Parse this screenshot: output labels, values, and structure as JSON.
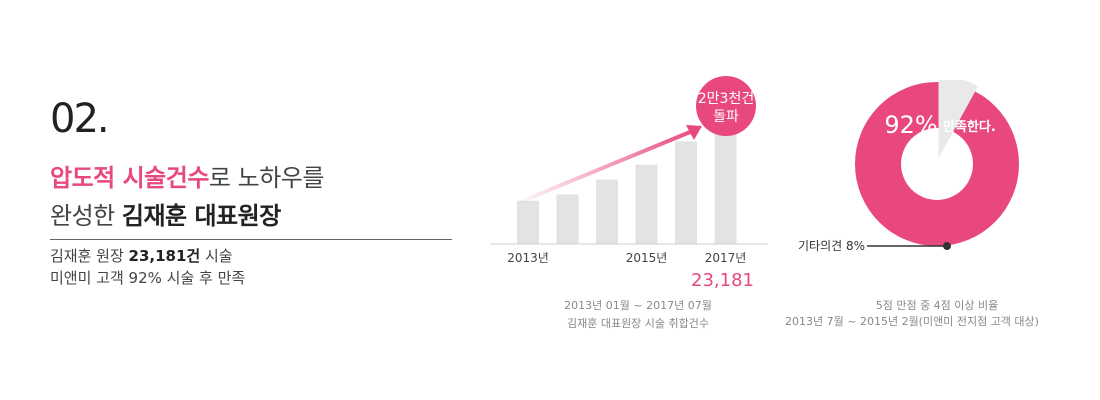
{
  "header": {
    "number": "02.",
    "title_pink": "압도적 시술건수",
    "title_rest": "로 노하우를",
    "subtitle_plain": "완성한 ",
    "subtitle_bold": "김재훈 대표원장"
  },
  "summary": {
    "line1_prefix": "김재훈 원장 ",
    "line1_value": "23,181건",
    "line1_suffix": " 시술",
    "line2": "미앤미 고객 92% 시술 후 만족"
  },
  "colors": {
    "accent": "#e8487e",
    "bar": "#e3e3e3",
    "gray_wedge": "#e9e9e9"
  },
  "chart_data": [
    {
      "type": "bar",
      "categories": [
        "2013년",
        "",
        "",
        "2015년",
        "",
        "2017년"
      ],
      "values": [
        6100,
        7000,
        9100,
        11200,
        14500,
        19500
      ],
      "ylim": [
        0,
        24000
      ],
      "badge": "2만3천건 돌파",
      "badge_line1": "2만3천건",
      "badge_line2": "돌파",
      "total_label": "23,181",
      "note_line1": "2013년 01월 ~ 2017년 07월",
      "note_line2": "김재훈 대표원장 시술 취합건수"
    },
    {
      "type": "pie",
      "slices": [
        {
          "label": "만족",
          "value": 92
        },
        {
          "label": "기타의견",
          "value": 8
        }
      ],
      "center_value": "92%",
      "center_text": "만족한다.",
      "other_label": "기타의견 8%",
      "note_line1": "5점 만점 중 4점 이상 비율",
      "note_line2": "2013년 7월 ~ 2015년 2월(미앤미 전지점 고객 대상)"
    }
  ]
}
